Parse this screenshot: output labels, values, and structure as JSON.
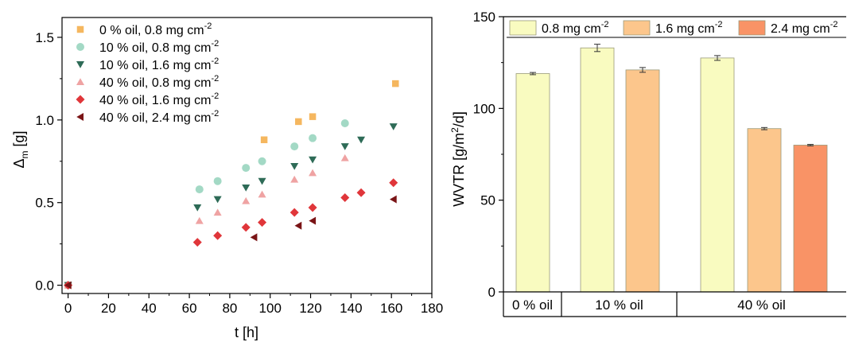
{
  "chart_data": [
    {
      "type": "scatter",
      "title": "",
      "xlabel": "t [h]",
      "ylabel": "Δ",
      "ylabel_sub": "m",
      "ylabel_unit": " [g]",
      "xlim": [
        -3,
        180
      ],
      "ylim": [
        -0.05,
        1.62
      ],
      "xticks": [
        0,
        20,
        40,
        60,
        80,
        100,
        120,
        140,
        160,
        180
      ],
      "yticks": [
        0.0,
        0.5,
        1.0,
        1.5
      ],
      "ytick_labels": [
        "0.0",
        "0.5",
        "1.0",
        "1.5"
      ],
      "grid": false,
      "legend_position": "top-left",
      "series": [
        {
          "name": "0 % oil, 0.8 mg cm",
          "sup": "-2",
          "color": "#F5B75F",
          "marker": "square",
          "x": [
            0,
            97,
            114,
            121,
            162
          ],
          "y": [
            0,
            0.88,
            0.99,
            1.02,
            1.22
          ]
        },
        {
          "name": "10 % oil, 0.8 mg cm",
          "sup": "-2",
          "color": "#A3D9C5",
          "marker": "circle",
          "x": [
            0,
            65,
            74,
            88,
            96,
            112,
            121,
            137
          ],
          "y": [
            0,
            0.58,
            0.63,
            0.71,
            0.75,
            0.84,
            0.89,
            0.98
          ]
        },
        {
          "name": "10 % oil, 1.6 mg cm",
          "sup": "-2",
          "color": "#2E6B57",
          "marker": "triangle-down",
          "x": [
            0,
            64,
            74,
            88,
            96,
            112,
            121,
            137,
            145,
            161
          ],
          "y": [
            0,
            0.47,
            0.52,
            0.59,
            0.63,
            0.72,
            0.76,
            0.84,
            0.88,
            0.96
          ]
        },
        {
          "name": "40 % oil, 0.8 mg cm",
          "sup": "-2",
          "color": "#EFA3A3",
          "marker": "triangle-up",
          "x": [
            0,
            65,
            74,
            88,
            96,
            112,
            121,
            137
          ],
          "y": [
            0,
            0.39,
            0.44,
            0.51,
            0.55,
            0.64,
            0.68,
            0.77
          ]
        },
        {
          "name": "40 % oil, 1.6 mg cm",
          "sup": "-2",
          "color": "#E0363A",
          "marker": "diamond",
          "x": [
            0,
            64,
            74,
            88,
            96,
            112,
            121,
            137,
            145,
            161
          ],
          "y": [
            0,
            0.26,
            0.3,
            0.35,
            0.38,
            0.44,
            0.47,
            0.53,
            0.56,
            0.62
          ]
        },
        {
          "name": "40 % oil, 2.4 mg cm",
          "sup": "-2",
          "color": "#7A1416",
          "marker": "triangle-left",
          "x": [
            0,
            92,
            114,
            121,
            161
          ],
          "y": [
            0,
            0.29,
            0.36,
            0.39,
            0.52
          ]
        }
      ]
    },
    {
      "type": "bar",
      "title": "",
      "xlabel": "",
      "ylabel": "WVTR [g/m",
      "ylabel_sup": "2",
      "ylabel_unit": "/d]",
      "ylim": [
        0,
        150
      ],
      "yticks": [
        0,
        50,
        100,
        150
      ],
      "grid": false,
      "legend_position": "top",
      "groups": [
        "0 % oil",
        "10 % oil",
        "40 % oil"
      ],
      "series_info": [
        {
          "name": "0.8 mg cm",
          "sup": "-2",
          "color": "#F9FBC0"
        },
        {
          "name": "1.6 mg cm",
          "sup": "-2",
          "color": "#FCC68C"
        },
        {
          "name": "2.4 mg cm",
          "sup": "-2",
          "color": "#F99366"
        }
      ],
      "bars": [
        {
          "group": "0 % oil",
          "series": 0,
          "value": 119,
          "error": 0.6
        },
        {
          "group": "10 % oil",
          "series": 0,
          "value": 133,
          "error": 2.0
        },
        {
          "group": "10 % oil",
          "series": 1,
          "value": 121,
          "error": 1.3
        },
        {
          "group": "40 % oil",
          "series": 0,
          "value": 127.5,
          "error": 1.3
        },
        {
          "group": "40 % oil",
          "series": 1,
          "value": 89,
          "error": 0.6
        },
        {
          "group": "40 % oil",
          "series": 2,
          "value": 80,
          "error": 0.4
        }
      ]
    }
  ]
}
